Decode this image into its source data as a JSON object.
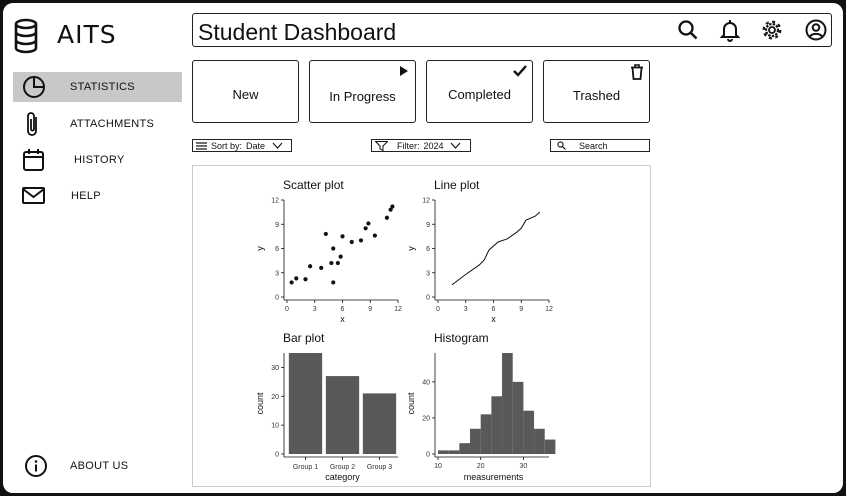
{
  "app": {
    "name": "AITS"
  },
  "sidebar": {
    "items": [
      {
        "label": "STATISTICS",
        "icon": "pie-chart-icon",
        "active": true
      },
      {
        "label": "ATTACHMENTS",
        "icon": "paperclip-icon",
        "active": false
      },
      {
        "label": "HISTORY",
        "icon": "calendar-icon",
        "active": false
      },
      {
        "label": "HELP",
        "icon": "mail-icon",
        "active": false
      }
    ],
    "about_label": "ABOUT US"
  },
  "header": {
    "title": "Student Dashboard",
    "icons": [
      "search-icon",
      "bell-icon",
      "gear-icon",
      "user-icon"
    ]
  },
  "cards": [
    {
      "label": "New",
      "icon": ""
    },
    {
      "label": "In Progress",
      "icon": "play-icon"
    },
    {
      "label": "Completed",
      "icon": "check-icon"
    },
    {
      "label": "Trashed",
      "icon": "trash-icon"
    }
  ],
  "toolbar": {
    "sort_label": "Sort by:",
    "sort_value": "Date",
    "filter_label": "Filter:",
    "filter_value": "2024",
    "search_placeholder": "Search"
  },
  "chart_data": [
    {
      "type": "scatter",
      "title": "Scatter plot",
      "xlabel": "x",
      "ylabel": "y",
      "xlim": [
        0,
        12
      ],
      "ylim": [
        0,
        12
      ],
      "xticks": [
        0,
        3,
        6,
        9,
        12
      ],
      "yticks": [
        0,
        3,
        6,
        9,
        12
      ],
      "points": [
        [
          0.5,
          1.8
        ],
        [
          1.0,
          2.3
        ],
        [
          2.0,
          2.2
        ],
        [
          2.5,
          3.8
        ],
        [
          3.7,
          3.6
        ],
        [
          4.2,
          7.8
        ],
        [
          4.8,
          4.2
        ],
        [
          5.0,
          1.8
        ],
        [
          5.0,
          6.0
        ],
        [
          5.5,
          4.2
        ],
        [
          5.8,
          5.0
        ],
        [
          6.0,
          7.5
        ],
        [
          7.0,
          6.8
        ],
        [
          8.0,
          7.0
        ],
        [
          8.5,
          8.5
        ],
        [
          8.8,
          9.1
        ],
        [
          9.5,
          7.6
        ],
        [
          10.8,
          9.8
        ],
        [
          11.2,
          10.8
        ],
        [
          11.4,
          11.2
        ]
      ]
    },
    {
      "type": "line",
      "title": "Line plot",
      "xlabel": "x",
      "ylabel": "y",
      "xlim": [
        0,
        12
      ],
      "ylim": [
        0,
        12
      ],
      "xticks": [
        0,
        3,
        6,
        9,
        12
      ],
      "yticks": [
        0,
        3,
        6,
        9,
        12
      ],
      "x": [
        1.5,
        3.0,
        4.5,
        5.0,
        5.5,
        6.5,
        7.5,
        8.5,
        9.0,
        9.5,
        10.5,
        11.0
      ],
      "y": [
        1.5,
        2.8,
        4.0,
        4.6,
        5.8,
        6.8,
        7.2,
        8.0,
        8.5,
        9.5,
        10.0,
        10.5
      ]
    },
    {
      "type": "bar",
      "title": "Bar plot",
      "xlabel": "category",
      "ylabel": "count",
      "ylim": [
        0,
        35
      ],
      "yticks": [
        0,
        10,
        20,
        30
      ],
      "categories": [
        "Group 1",
        "Group 2",
        "Group 3"
      ],
      "values": [
        35,
        27,
        21
      ]
    },
    {
      "type": "histogram",
      "title": "Histogram",
      "xlabel": "measurements",
      "ylabel": "count",
      "xlim": [
        10,
        36
      ],
      "ylim": [
        0,
        56
      ],
      "xticks": [
        10,
        20,
        30
      ],
      "yticks": [
        0,
        20,
        40
      ],
      "bin_start": 10,
      "bin_width": 2.5,
      "counts": [
        2,
        2,
        6,
        14,
        22,
        32,
        56,
        40,
        24,
        14,
        8
      ]
    }
  ]
}
